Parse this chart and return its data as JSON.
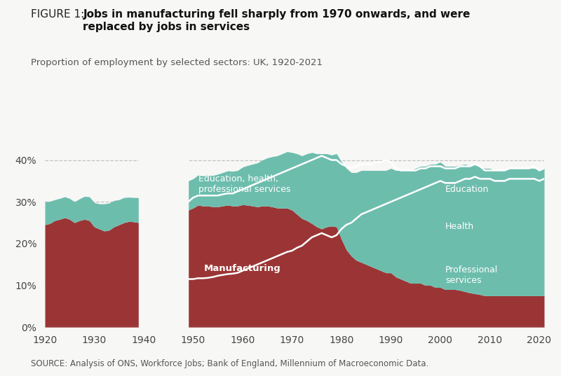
{
  "title_prefix": "FIGURE 1: ",
  "title_bold": "Jobs in manufacturing fell sharply from 1970 onwards, and were\nreplaced by jobs in services",
  "subtitle": "Proportion of employment by selected sectors: UK, 1920-2021",
  "source": "SOURCE: Analysis of ONS, Workforce Jobs; Bank of England, Millennium of Macroeconomic Data.",
  "bg_color": "#f7f7f5",
  "manufacturing_color": "#9b3535",
  "services_color": "#6dbdad",
  "white_line_color": "#ffffff",
  "years_pre": [
    1920,
    1921,
    1922,
    1923,
    1924,
    1925,
    1926,
    1927,
    1928,
    1929,
    1930,
    1931,
    1932,
    1933,
    1934,
    1935,
    1936,
    1937,
    1938,
    1939
  ],
  "manuf_pre": [
    24.5,
    24.8,
    25.5,
    25.8,
    26.2,
    25.8,
    25.0,
    25.5,
    25.8,
    25.5,
    24.0,
    23.5,
    23.0,
    23.2,
    24.0,
    24.5,
    25.0,
    25.3,
    25.2,
    25.0
  ],
  "services_pre": [
    5.5,
    5.3,
    5.0,
    5.0,
    5.0,
    5.0,
    5.0,
    5.2,
    5.5,
    5.7,
    5.8,
    6.0,
    6.5,
    6.5,
    6.3,
    6.0,
    6.0,
    5.8,
    5.8,
    6.0
  ],
  "years_post": [
    1949,
    1950,
    1951,
    1952,
    1953,
    1954,
    1955,
    1956,
    1957,
    1958,
    1959,
    1960,
    1961,
    1962,
    1963,
    1964,
    1965,
    1966,
    1967,
    1968,
    1969,
    1970,
    1971,
    1972,
    1973,
    1974,
    1975,
    1976,
    1977,
    1978,
    1979,
    1980,
    1981,
    1982,
    1983,
    1984,
    1985,
    1986,
    1987,
    1988,
    1989,
    1990,
    1991,
    1992,
    1993,
    1994,
    1995,
    1996,
    1997,
    1998,
    1999,
    2000,
    2001,
    2002,
    2003,
    2004,
    2005,
    2006,
    2007,
    2008,
    2009,
    2010,
    2011,
    2012,
    2013,
    2014,
    2015,
    2016,
    2017,
    2018,
    2019,
    2020,
    2021
  ],
  "manuf_post": [
    28.0,
    28.5,
    29.2,
    29.0,
    29.0,
    28.8,
    28.8,
    29.0,
    29.2,
    29.0,
    29.0,
    29.3,
    29.2,
    29.0,
    28.8,
    29.0,
    29.0,
    28.8,
    28.5,
    28.5,
    28.5,
    28.0,
    27.0,
    26.0,
    25.5,
    24.8,
    24.0,
    23.5,
    24.0,
    24.2,
    24.0,
    21.0,
    18.5,
    17.0,
    16.0,
    15.5,
    15.0,
    14.5,
    14.0,
    13.5,
    13.0,
    13.0,
    12.0,
    11.5,
    11.0,
    10.5,
    10.5,
    10.5,
    10.0,
    10.0,
    9.5,
    9.5,
    9.0,
    9.0,
    9.0,
    8.8,
    8.5,
    8.2,
    8.0,
    7.8,
    7.5,
    7.5,
    7.5,
    7.5,
    7.5,
    7.5,
    7.5,
    7.5,
    7.5,
    7.5,
    7.5,
    7.5,
    7.5
  ],
  "total_services_post": [
    7.0,
    7.0,
    7.2,
    7.2,
    7.3,
    7.5,
    7.8,
    8.0,
    8.2,
    8.3,
    8.5,
    9.0,
    9.5,
    10.0,
    10.5,
    11.0,
    11.5,
    12.0,
    12.5,
    13.0,
    13.5,
    13.8,
    14.5,
    15.0,
    16.0,
    17.0,
    17.5,
    18.0,
    17.5,
    17.0,
    17.5,
    18.5,
    19.5,
    20.0,
    21.0,
    22.0,
    22.5,
    23.0,
    23.5,
    24.0,
    24.5,
    25.0,
    25.5,
    26.0,
    26.5,
    27.0,
    27.5,
    28.0,
    28.5,
    29.0,
    29.5,
    30.0,
    29.5,
    29.5,
    29.5,
    30.0,
    30.5,
    30.5,
    31.0,
    30.5,
    30.5,
    30.5,
    30.0,
    30.0,
    30.0,
    30.5,
    30.5,
    30.5,
    30.5,
    30.5,
    30.5,
    30.0,
    30.5
  ],
  "prof_services_boundary": [
    11.5,
    11.5,
    11.7,
    11.7,
    11.8,
    12.0,
    12.3,
    12.5,
    12.7,
    12.8,
    13.0,
    13.5,
    14.0,
    14.5,
    15.0,
    15.5,
    16.0,
    16.5,
    17.0,
    17.5,
    18.0,
    18.3,
    19.0,
    19.5,
    20.5,
    21.5,
    22.0,
    22.5,
    22.0,
    21.5,
    22.0,
    23.5,
    24.5,
    25.0,
    26.0,
    27.0,
    27.5,
    28.0,
    28.5,
    29.0,
    29.5,
    30.0,
    30.5,
    31.0,
    31.5,
    32.0,
    32.5,
    33.0,
    33.5,
    34.0,
    34.5,
    35.0,
    34.5,
    34.5,
    34.5,
    35.0,
    35.5,
    35.5,
    36.0,
    35.5,
    35.5,
    35.5,
    35.0,
    35.0,
    35.0,
    35.5,
    35.5,
    35.5,
    35.5,
    35.5,
    35.5,
    35.0,
    35.5
  ],
  "health_boundary": [
    30.0,
    31.0,
    31.5,
    31.5,
    31.5,
    31.5,
    31.5,
    31.8,
    32.0,
    32.0,
    32.5,
    33.0,
    33.5,
    34.0,
    34.5,
    35.0,
    35.5,
    36.0,
    36.5,
    37.0,
    37.5,
    38.0,
    38.5,
    39.0,
    39.5,
    40.0,
    40.5,
    41.0,
    40.5,
    40.0,
    40.0,
    39.0,
    38.5,
    38.0,
    38.5,
    39.0,
    39.0,
    39.0,
    39.5,
    39.5,
    40.0,
    39.5,
    38.0,
    37.5,
    37.5,
    37.5,
    37.5,
    38.0,
    38.0,
    38.5,
    38.5,
    38.5,
    38.0,
    38.0,
    38.0,
    38.5,
    38.5,
    38.5,
    39.0,
    38.5,
    37.5,
    37.5,
    37.5,
    37.5,
    37.5,
    38.0,
    38.0,
    38.0,
    38.0,
    38.0,
    38.5,
    37.5,
    38.0
  ],
  "ylim": [
    0,
    45
  ],
  "yticks": [
    0,
    10,
    20,
    30,
    40
  ],
  "ytick_labels": [
    "0%",
    "10%",
    "20%",
    "30%",
    "40%"
  ]
}
